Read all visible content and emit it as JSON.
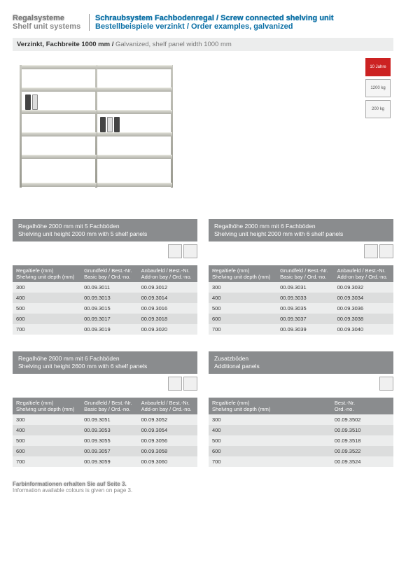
{
  "header": {
    "left_line1": "Regalsysteme",
    "left_line2": "Shelf unit systems",
    "right_line1": "Schraubsystem Fachbodenregal / Screw connected shelving unit",
    "right_line2": "Bestellbeispiele verzinkt / Order examples, galvanized"
  },
  "subheader_bold": "Verzinkt, Fachbreite 1000 mm /",
  "subheader_light": "Galvanized, shelf panel width 1000 mm",
  "badges": {
    "years": "10 Jahre",
    "load1": "1200 kg",
    "load2": "200 kg"
  },
  "blocks": [
    {
      "title_de": "Regalhöhe 2000 mm mit 5 Fachböden",
      "title_en": "Shelving unit height 2000 mm with 5 shelf panels",
      "cols": [
        {
          "de": "Regaltiefe (mm)",
          "en": "Shelving unit depth (mm)"
        },
        {
          "de": "Grundfeld / Best.-Nr.",
          "en": "Basic bay / Ord.-no."
        },
        {
          "de": "Anbaufeld / Best.-Nr.",
          "en": "Add-on bay / Ord.-no."
        }
      ],
      "rows": [
        [
          "300",
          "00.09.3011",
          "00.09.3012"
        ],
        [
          "400",
          "00.09.3013",
          "00.09.3014"
        ],
        [
          "500",
          "00.09.3015",
          "00.09.3016"
        ],
        [
          "600",
          "00.09.3017",
          "00.09.3018"
        ],
        [
          "700",
          "00.09.3019",
          "00.09.3020"
        ]
      ],
      "icons": 2
    },
    {
      "title_de": "Regalhöhe 2000 mm mit 6 Fachböden",
      "title_en": "Shelving unit height 2000 mm with 6 shelf panels",
      "cols": [
        {
          "de": "Regaltiefe (mm)",
          "en": "Shelving unit depth (mm)"
        },
        {
          "de": "Grundfeld / Best.-Nr.",
          "en": "Basic bay / Ord.-no."
        },
        {
          "de": "Anbaufeld / Best.-Nr.",
          "en": "Add-on bay / Ord.-no."
        }
      ],
      "rows": [
        [
          "300",
          "00.09.3031",
          "00.09.3032"
        ],
        [
          "400",
          "00.09.3033",
          "00.09.3034"
        ],
        [
          "500",
          "00.09.3035",
          "00.09.3036"
        ],
        [
          "600",
          "00.09.3037",
          "00.09.3038"
        ],
        [
          "700",
          "00.09.3039",
          "00.09.3040"
        ]
      ],
      "icons": 2
    },
    {
      "title_de": "Regalhöhe 2600 mm mit 6 Fachböden",
      "title_en": "Shelving unit height 2600 mm with 6 shelf panels",
      "cols": [
        {
          "de": "Regaltiefe (mm)",
          "en": "Shelving unit depth (mm)"
        },
        {
          "de": "Grundfeld / Best.-Nr.",
          "en": "Basic bay / Ord.-no."
        },
        {
          "de": "Anbaufeld / Best.-Nr.",
          "en": "Add-on bay / Ord.-no."
        }
      ],
      "rows": [
        [
          "300",
          "00.09.3051",
          "00.09.3052"
        ],
        [
          "400",
          "00.09.3053",
          "00.09.3054"
        ],
        [
          "500",
          "00.09.3055",
          "00.09.3056"
        ],
        [
          "600",
          "00.09.3057",
          "00.09.3058"
        ],
        [
          "700",
          "00.09.3059",
          "00.09.3060"
        ]
      ],
      "icons": 2
    },
    {
      "title_de": "Zusatzböden",
      "title_en": "Additional panels",
      "cols": [
        {
          "de": "Regaltiefe (mm)",
          "en": "Shelving unit depth (mm)"
        },
        {
          "de": "Best.-Nr.",
          "en": "Ord.-no."
        }
      ],
      "rows": [
        [
          "300",
          "00.09.3502"
        ],
        [
          "400",
          "00.09.3510"
        ],
        [
          "500",
          "00.09.3518"
        ],
        [
          "600",
          "00.09.3522"
        ],
        [
          "700",
          "00.09.3524"
        ]
      ],
      "icons": 1
    }
  ],
  "footer": {
    "line1": "Farbinformationen erhalten Sie auf Seite 3.",
    "line2": "Information available colours is given on page 3."
  }
}
